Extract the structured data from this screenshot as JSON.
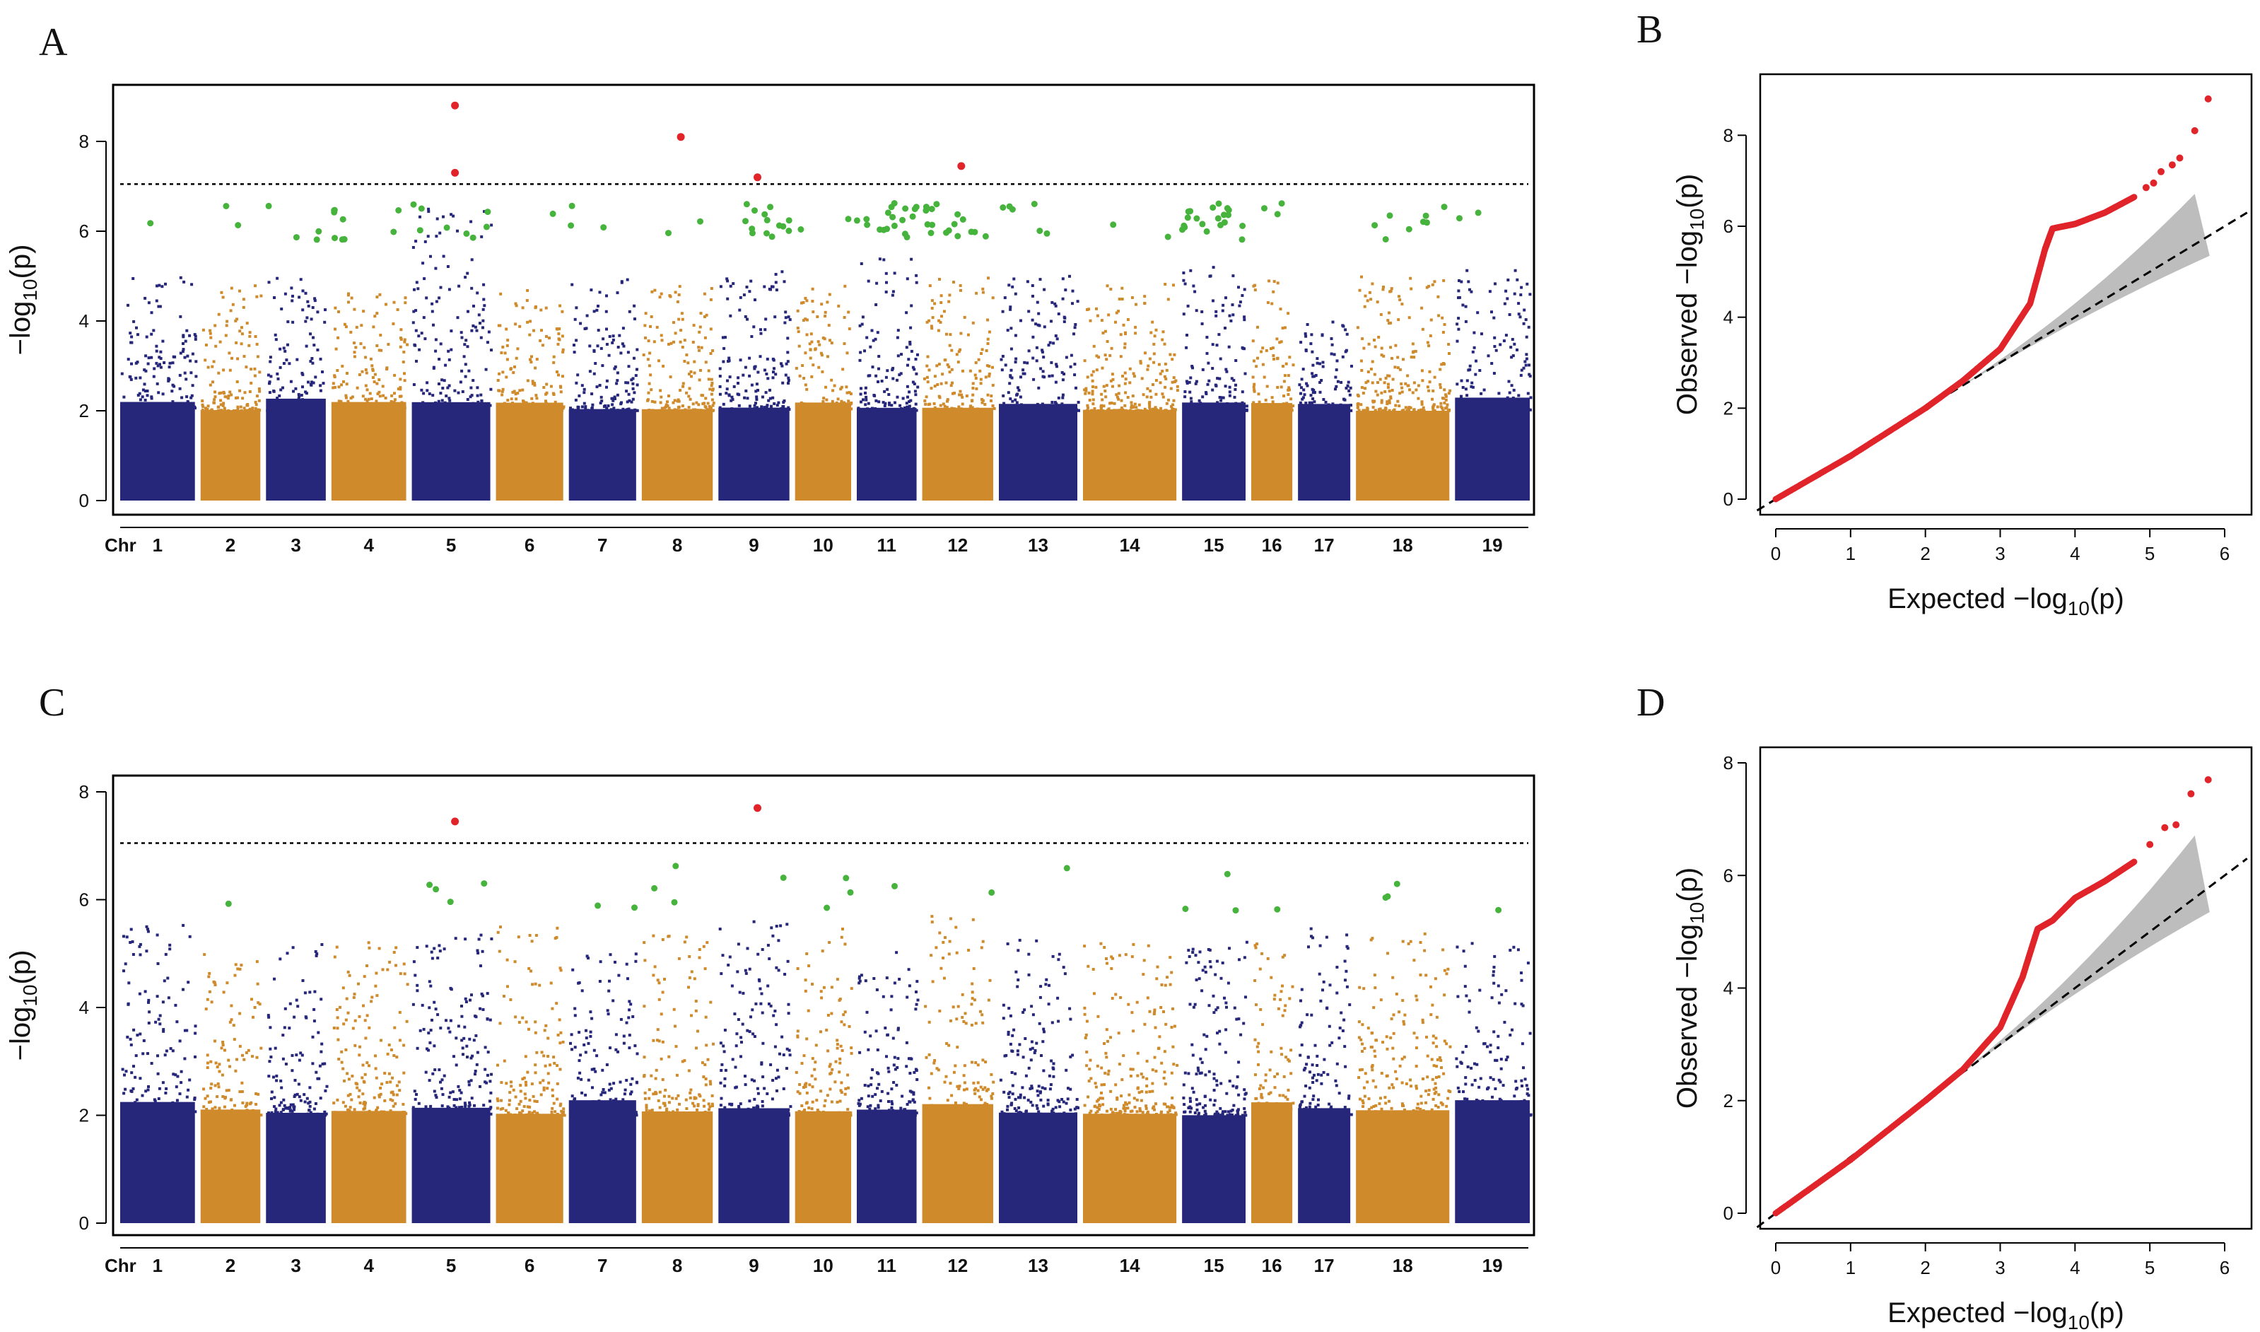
{
  "panels": [
    {
      "letter": "A"
    },
    {
      "letter": "B"
    },
    {
      "letter": "C"
    },
    {
      "letter": "D"
    }
  ],
  "colors": {
    "odd_chr": "#26277a",
    "even_chr": "#cf8a2c",
    "suggestive": "#46b33c",
    "significant": "#e0242a",
    "ci_band": "#bdbdbd"
  },
  "chart_data": [
    {
      "id": "A",
      "type": "scatter",
      "subtype": "manhattan",
      "ylabel_prefix": "−log",
      "ylabel_sub": "10",
      "ylabel_arg": "(p)",
      "xlabel_prefix": "Chr",
      "ylim": [
        0,
        9
      ],
      "yticks": [
        "0",
        "2",
        "4",
        "6",
        "8"
      ],
      "threshold": 7.05,
      "chromosomes": [
        "1",
        "2",
        "3",
        "4",
        "5",
        "6",
        "7",
        "8",
        "9",
        "10",
        "11",
        "12",
        "13",
        "14",
        "15",
        "16",
        "17",
        "18",
        "19"
      ],
      "chr_rel_size": [
        1.0,
        0.8,
        0.8,
        1.0,
        1.05,
        0.9,
        0.9,
        0.95,
        0.95,
        0.75,
        0.8,
        0.95,
        1.05,
        1.25,
        0.85,
        0.55,
        0.7,
        1.25,
        1.0
      ],
      "chr_max_background": [
        5.0,
        4.8,
        5.1,
        4.8,
        6.5,
        4.7,
        5.0,
        4.8,
        5.1,
        4.8,
        5.4,
        5.0,
        5.0,
        4.9,
        5.3,
        4.9,
        4.0,
        5.0,
        5.2
      ],
      "significant_points": [
        [
          5,
          8.8
        ],
        [
          5,
          7.3
        ],
        [
          8,
          8.1
        ],
        [
          9,
          7.2
        ],
        [
          12,
          7.45
        ]
      ],
      "suggestive_counts": [
        1,
        2,
        4,
        9,
        8,
        1,
        3,
        2,
        14,
        2,
        18,
        16,
        6,
        2,
        20,
        3,
        0,
        8,
        2
      ]
    },
    {
      "id": "B",
      "type": "scatter",
      "subtype": "qq",
      "xlabel_prefix": "Expected  −log",
      "xlabel_sub": "10",
      "xlabel_arg": "(p)",
      "ylabel_prefix": "Observed  −log",
      "ylabel_sub": "10",
      "ylabel_arg": "(p)",
      "xlim": [
        0,
        6
      ],
      "ylim": [
        0,
        9
      ],
      "xticks": [
        "0",
        "1",
        "2",
        "3",
        "4",
        "5",
        "6"
      ],
      "yticks": [
        "0",
        "2",
        "4",
        "6",
        "8"
      ],
      "curve": [
        [
          0,
          0
        ],
        [
          1,
          0.95
        ],
        [
          2,
          2.0
        ],
        [
          2.5,
          2.6
        ],
        [
          3,
          3.3
        ],
        [
          3.4,
          4.3
        ],
        [
          3.6,
          5.5
        ],
        [
          3.7,
          5.95
        ],
        [
          4.0,
          6.05
        ],
        [
          4.4,
          6.3
        ],
        [
          4.8,
          6.65
        ]
      ],
      "top_points": [
        [
          4.95,
          6.85
        ],
        [
          5.05,
          6.95
        ],
        [
          5.15,
          7.2
        ],
        [
          5.3,
          7.35
        ],
        [
          5.4,
          7.5
        ],
        [
          5.6,
          8.1
        ],
        [
          5.78,
          8.8
        ]
      ],
      "ci_upper_at_max": 7.05,
      "ci_lower_at_max": 5.35
    },
    {
      "id": "C",
      "type": "scatter",
      "subtype": "manhattan",
      "ylabel_prefix": "−log",
      "ylabel_sub": "10",
      "ylabel_arg": "(p)",
      "xlabel_prefix": "Chr",
      "ylim": [
        0,
        8.5
      ],
      "yticks": [
        "0",
        "2",
        "4",
        "6",
        "8"
      ],
      "threshold": 7.05,
      "chromosomes": [
        "1",
        "2",
        "3",
        "4",
        "5",
        "6",
        "7",
        "8",
        "9",
        "10",
        "11",
        "12",
        "13",
        "14",
        "15",
        "16",
        "17",
        "18",
        "19"
      ],
      "chr_rel_size": [
        1.0,
        0.8,
        0.8,
        1.0,
        1.05,
        0.9,
        0.9,
        0.95,
        0.95,
        0.75,
        0.8,
        0.95,
        1.05,
        1.25,
        0.85,
        0.55,
        0.7,
        1.25,
        1.0
      ],
      "chr_max_background": [
        5.6,
        5.2,
        5.3,
        5.3,
        5.4,
        5.5,
        5.0,
        5.4,
        5.6,
        5.5,
        5.2,
        5.7,
        5.3,
        5.2,
        5.3,
        5.4,
        5.7,
        5.4,
        5.2
      ],
      "significant_points": [
        [
          5,
          7.45
        ],
        [
          9,
          7.7
        ]
      ],
      "suggestive_counts": [
        0,
        1,
        0,
        0,
        4,
        0,
        2,
        3,
        1,
        3,
        1,
        1,
        1,
        0,
        3,
        1,
        0,
        3,
        1
      ]
    },
    {
      "id": "D",
      "type": "scatter",
      "subtype": "qq",
      "xlabel_prefix": "Expected  −log",
      "xlabel_sub": "10",
      "xlabel_arg": "(p)",
      "ylabel_prefix": "Observed  −log",
      "ylabel_sub": "10",
      "ylabel_arg": "(p)",
      "xlim": [
        0,
        6
      ],
      "ylim": [
        0,
        8
      ],
      "xticks": [
        "0",
        "1",
        "2",
        "3",
        "4",
        "5",
        "6"
      ],
      "yticks": [
        "0",
        "2",
        "4",
        "6",
        "8"
      ],
      "curve": [
        [
          0,
          0
        ],
        [
          1,
          0.95
        ],
        [
          2,
          2.0
        ],
        [
          2.5,
          2.55
        ],
        [
          3,
          3.3
        ],
        [
          3.3,
          4.2
        ],
        [
          3.5,
          5.05
        ],
        [
          3.7,
          5.2
        ],
        [
          4.0,
          5.6
        ],
        [
          4.4,
          5.9
        ],
        [
          4.8,
          6.25
        ]
      ],
      "top_points": [
        [
          5.0,
          6.55
        ],
        [
          5.2,
          6.85
        ],
        [
          5.35,
          6.9
        ],
        [
          5.55,
          7.45
        ],
        [
          5.78,
          7.7
        ]
      ],
      "ci_upper_at_max": 7.05,
      "ci_lower_at_max": 5.35
    }
  ]
}
